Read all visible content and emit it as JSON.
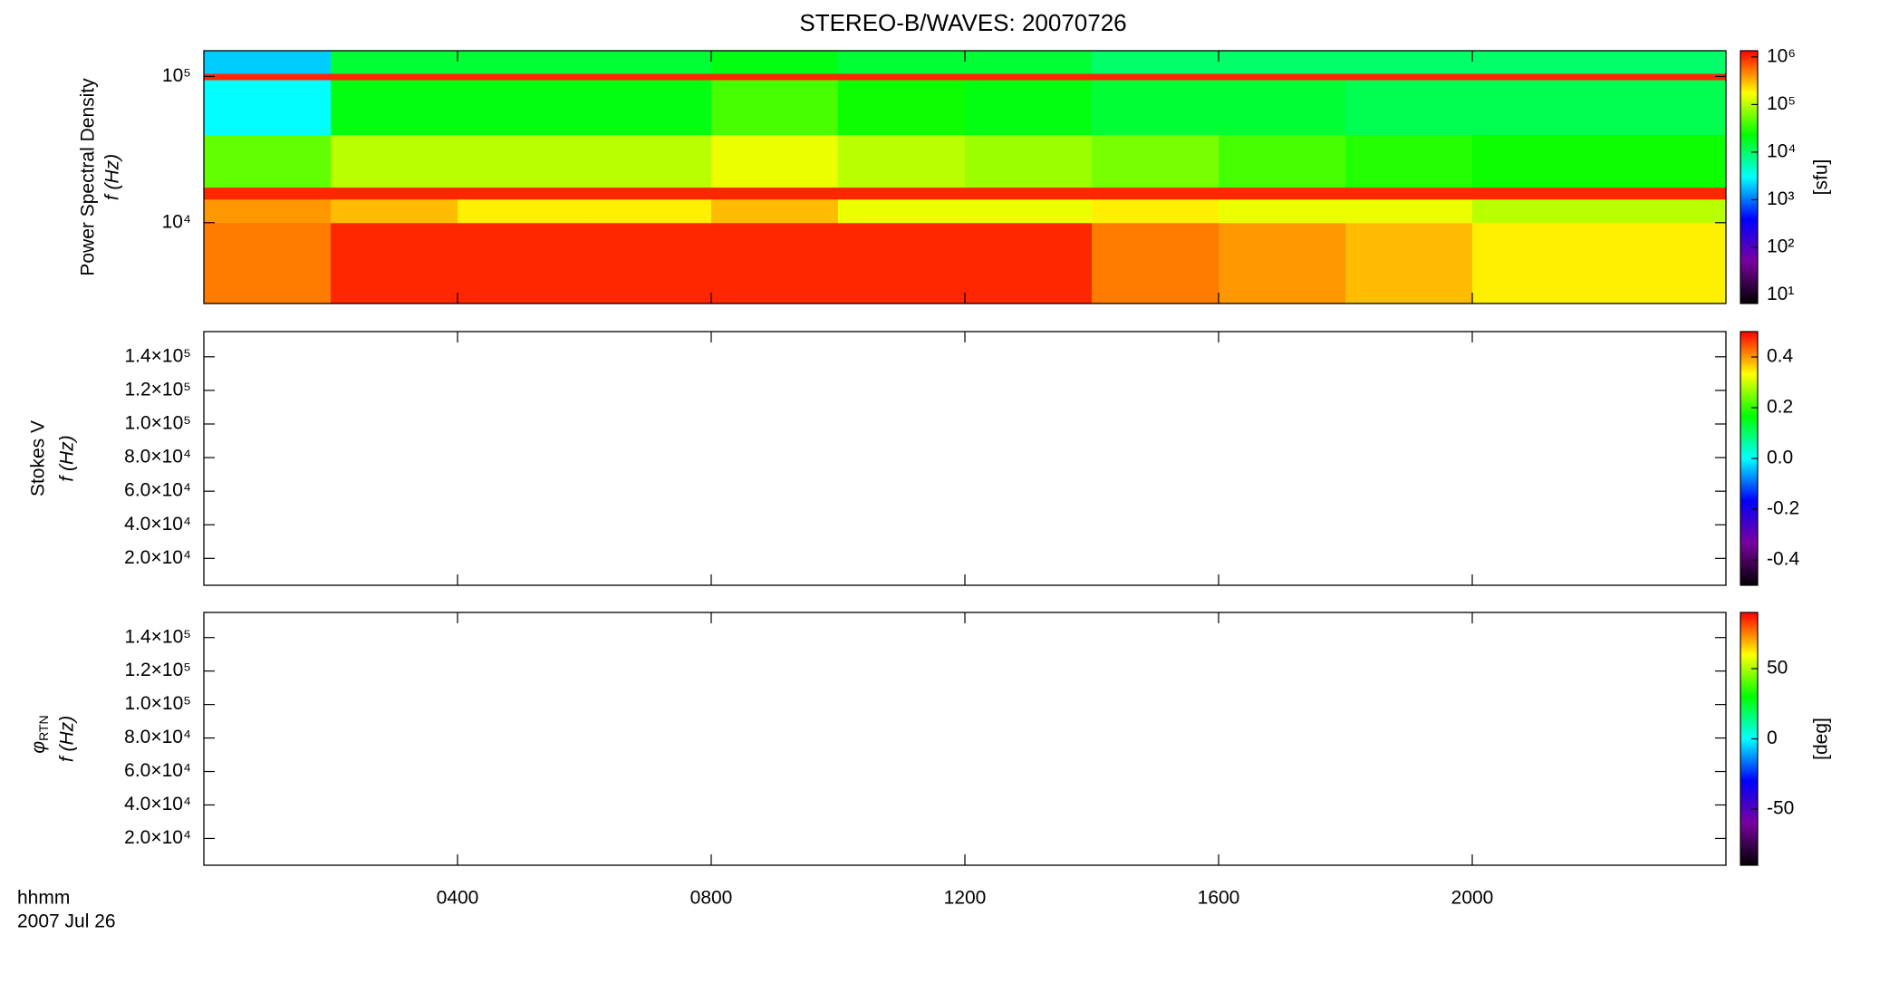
{
  "chart_data": [
    {
      "type": "heatmap",
      "title": "STEREO-B/WAVES: 20070726",
      "ylabel": [
        "Power Spectral Density",
        "f (Hz)"
      ],
      "xlim": [
        0,
        24
      ],
      "ylim": [
        2800,
        150000
      ],
      "ylog": true,
      "yticks": [
        {
          "value": 10000,
          "label": "10⁴"
        },
        {
          "value": 100000,
          "label": "10⁵"
        }
      ],
      "x_edges": [
        0,
        2,
        4,
        6,
        8,
        10,
        12,
        14,
        16,
        18,
        20,
        22,
        24
      ],
      "y_edges": [
        2800,
        10000,
        14500,
        17500,
        40000,
        95000,
        105000,
        150000
      ],
      "values": [
        [
          500000,
          1000000,
          1000000,
          1000000,
          1000000,
          1000000,
          1000000,
          500000,
          400000,
          300000,
          200000,
          200000
        ],
        [
          400000,
          300000,
          200000,
          200000,
          300000,
          150000,
          150000,
          200000,
          150000,
          150000,
          100000,
          100000
        ],
        [
          1000000,
          1000000,
          1000000,
          1000000,
          1000000,
          1000000,
          1000000,
          1000000,
          1000000,
          1000000,
          1000000,
          1000000
        ],
        [
          50000,
          100000,
          100000,
          100000,
          150000,
          100000,
          80000,
          60000,
          40000,
          30000,
          25000,
          25000
        ],
        [
          3000,
          20000,
          20000,
          20000,
          40000,
          25000,
          20000,
          15000,
          15000,
          12000,
          12000,
          12000
        ],
        [
          1000000,
          1000000,
          1000000,
          1000000,
          1000000,
          1000000,
          1000000,
          1000000,
          1000000,
          1000000,
          1000000,
          1000000
        ],
        [
          2000,
          15000,
          15000,
          15000,
          20000,
          15000,
          15000,
          10000,
          10000,
          10000,
          10000,
          10000
        ]
      ],
      "colorbar": {
        "label": "[sfu]",
        "lim": [
          6.6,
          1350000
        ],
        "log": true,
        "ticks": [
          {
            "value": 10,
            "label": "10¹"
          },
          {
            "value": 100,
            "label": "10²"
          },
          {
            "value": 1000,
            "label": "10³"
          },
          {
            "value": 10000,
            "label": "10⁴"
          },
          {
            "value": 100000,
            "label": "10⁵"
          },
          {
            "value": 1000000,
            "label": "10⁶"
          }
        ]
      },
      "colormap": [
        "#000000",
        "#7a00a0",
        "#0000ff",
        "#00ffff",
        "#00ff00",
        "#ffff00",
        "#ff0000"
      ]
    },
    {
      "type": "heatmap",
      "ylabel": [
        "Stokes V",
        "f (Hz)"
      ],
      "xlim": [
        0,
        24
      ],
      "ylim": [
        4000,
        155000
      ],
      "yticks": [
        {
          "value": 20000,
          "label": "2.0×10⁴"
        },
        {
          "value": 40000,
          "label": "4.0×10⁴"
        },
        {
          "value": 60000,
          "label": "6.0×10⁴"
        },
        {
          "value": 80000,
          "label": "8.0×10⁴"
        },
        {
          "value": 100000,
          "label": "1.0×10⁵"
        },
        {
          "value": 120000,
          "label": "1.2×10⁵"
        },
        {
          "value": 140000,
          "label": "1.4×10⁵"
        }
      ],
      "values": [],
      "colorbar": {
        "lim": [
          -0.5,
          0.5
        ],
        "ticks": [
          -0.4,
          -0.2,
          {
            "value": 0,
            "label": "0.0"
          },
          0.2,
          0.4
        ]
      },
      "colormap": [
        "#000000",
        "#7a00a0",
        "#0000ff",
        "#00ffff",
        "#00ff00",
        "#ffff00",
        "#ff0000"
      ]
    },
    {
      "type": "heatmap",
      "ylabel": [
        "φ",
        "RTN",
        "f (Hz)"
      ],
      "xlim": [
        0,
        24
      ],
      "ylim": [
        4000,
        155000
      ],
      "yticks": [
        {
          "value": 20000,
          "label": "2.0×10⁴"
        },
        {
          "value": 40000,
          "label": "4.0×10⁴"
        },
        {
          "value": 60000,
          "label": "6.0×10⁴"
        },
        {
          "value": 80000,
          "label": "8.0×10⁴"
        },
        {
          "value": 100000,
          "label": "1.0×10⁵"
        },
        {
          "value": 120000,
          "label": "1.2×10⁵"
        },
        {
          "value": 140000,
          "label": "1.4×10⁵"
        }
      ],
      "values": [],
      "colorbar": {
        "label": "[deg]",
        "lim": [
          -90,
          90
        ],
        "ticks": [
          -50,
          0,
          50
        ]
      },
      "colormap": [
        "#000000",
        "#7a00a0",
        "#0000ff",
        "#00ffff",
        "#00ff00",
        "#ffff00",
        "#ff0000"
      ],
      "xticks": [
        {
          "value": 4,
          "label": "0400"
        },
        {
          "value": 8,
          "label": "0800"
        },
        {
          "value": 12,
          "label": "1200"
        },
        {
          "value": 16,
          "label": "1600"
        },
        {
          "value": 20,
          "label": "2000"
        }
      ],
      "xlabel": [
        "hhmm",
        "2007 Jul 26"
      ]
    }
  ]
}
